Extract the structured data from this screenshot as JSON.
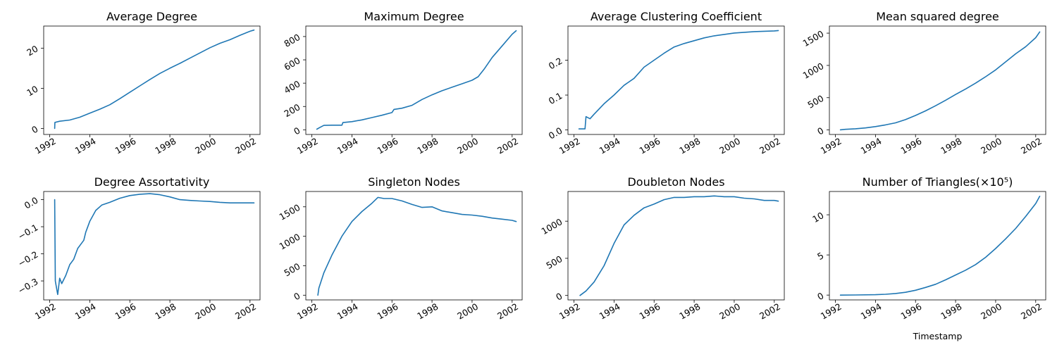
{
  "colors": {
    "line": "#1f77b4"
  },
  "chart_data": [
    {
      "type": "line",
      "title": "Average Degree",
      "xlabel": "",
      "xlim": [
        1991.7,
        2002.5
      ],
      "ylim": [
        -1.5,
        25.5
      ],
      "xticks": [
        1992,
        1994,
        1996,
        1998,
        2000,
        2002
      ],
      "xtick_labels": [
        "1992",
        "1994",
        "1996",
        "1998",
        "2000",
        "2002"
      ],
      "yticks": [
        0,
        10,
        20
      ],
      "ytick_labels": [
        "0",
        "10",
        "20"
      ],
      "series": [
        {
          "x": [
            1992.25,
            1992.26,
            1992.5,
            1993.0,
            1993.5,
            1994.0,
            1994.5,
            1995.0,
            1995.5,
            1996.0,
            1996.5,
            1997.0,
            1997.5,
            1998.0,
            1998.5,
            1999.0,
            1999.5,
            2000.0,
            2000.5,
            2001.0,
            2001.5,
            2002.0,
            2002.2
          ],
          "y": [
            0,
            1.5,
            1.8,
            2.1,
            2.8,
            3.8,
            4.8,
            5.9,
            7.4,
            9.0,
            10.6,
            12.2,
            13.7,
            15.0,
            16.2,
            17.5,
            18.8,
            20.1,
            21.2,
            22.1,
            23.2,
            24.2,
            24.5
          ]
        }
      ]
    },
    {
      "type": "line",
      "title": "Maximum Degree",
      "xlabel": "",
      "xlim": [
        1991.7,
        2002.5
      ],
      "ylim": [
        -40,
        890
      ],
      "xticks": [
        1992,
        1994,
        1996,
        1998,
        2000,
        2002
      ],
      "xtick_labels": [
        "1992",
        "1994",
        "1996",
        "1998",
        "2000",
        "2002"
      ],
      "yticks": [
        0,
        200,
        400,
        600,
        800
      ],
      "ytick_labels": [
        "0",
        "200",
        "400",
        "600",
        "800"
      ],
      "series": [
        {
          "x": [
            1992.25,
            1992.4,
            1992.6,
            1993.0,
            1993.5,
            1993.55,
            1994.0,
            1994.5,
            1995.0,
            1995.5,
            1996.0,
            1996.1,
            1996.5,
            1997.0,
            1997.5,
            1998.0,
            1998.5,
            1999.0,
            1999.5,
            2000.0,
            2000.3,
            2000.6,
            2001.0,
            2001.5,
            2002.0,
            2002.2
          ],
          "y": [
            5,
            20,
            38,
            40,
            40,
            62,
            70,
            85,
            105,
            125,
            148,
            175,
            185,
            210,
            260,
            300,
            335,
            365,
            395,
            425,
            455,
            520,
            620,
            720,
            820,
            850
          ]
        }
      ]
    },
    {
      "type": "line",
      "title": "Average Clustering Coefficient",
      "xlabel": "",
      "xlim": [
        1991.7,
        2002.5
      ],
      "ylim": [
        -0.013,
        0.298
      ],
      "xticks": [
        1992,
        1994,
        1996,
        1998,
        2000,
        2002
      ],
      "xtick_labels": [
        "1992",
        "1994",
        "1996",
        "1998",
        "2000",
        "2002"
      ],
      "yticks": [
        0.0,
        0.1,
        0.2
      ],
      "ytick_labels": [
        "0.0",
        "0.1",
        "0.2"
      ],
      "series": [
        {
          "x": [
            1992.25,
            1992.55,
            1992.6,
            1992.8,
            1993.0,
            1993.5,
            1994.0,
            1994.5,
            1995.0,
            1995.5,
            1996.0,
            1996.5,
            1997.0,
            1997.5,
            1998.0,
            1998.5,
            1999.0,
            1999.5,
            2000.0,
            2000.5,
            2001.0,
            2001.5,
            2002.0,
            2002.2
          ],
          "y": [
            0.003,
            0.003,
            0.038,
            0.032,
            0.045,
            0.075,
            0.1,
            0.128,
            0.148,
            0.18,
            0.2,
            0.22,
            0.238,
            0.248,
            0.256,
            0.264,
            0.27,
            0.274,
            0.278,
            0.28,
            0.282,
            0.283,
            0.284,
            0.285
          ]
        }
      ]
    },
    {
      "type": "line",
      "title": "Mean squared degree",
      "xlabel": "",
      "xlim": [
        1991.7,
        2002.5
      ],
      "ylim": [
        -70,
        1610
      ],
      "xticks": [
        1992,
        1994,
        1996,
        1998,
        2000,
        2002
      ],
      "xtick_labels": [
        "1992",
        "1994",
        "1996",
        "1998",
        "2000",
        "2002"
      ],
      "yticks": [
        0,
        500,
        1000,
        1500
      ],
      "ytick_labels": [
        "0",
        "500",
        "1000",
        "1500"
      ],
      "series": [
        {
          "x": [
            1992.25,
            1992.5,
            1993.0,
            1993.5,
            1994.0,
            1994.5,
            1995.0,
            1995.5,
            1996.0,
            1996.5,
            1997.0,
            1997.5,
            1998.0,
            1998.5,
            1999.0,
            1999.5,
            2000.0,
            2000.5,
            2001.0,
            2001.5,
            2002.0,
            2002.2
          ],
          "y": [
            2,
            10,
            18,
            32,
            52,
            78,
            110,
            160,
            225,
            295,
            375,
            460,
            550,
            635,
            725,
            825,
            930,
            1055,
            1180,
            1290,
            1430,
            1520
          ]
        }
      ]
    },
    {
      "type": "line",
      "title": "Degree Assortativity",
      "xlabel": "",
      "xlim": [
        1991.7,
        2002.5
      ],
      "ylim": [
        -0.37,
        0.03
      ],
      "xticks": [
        1992,
        1994,
        1996,
        1998,
        2000,
        2002
      ],
      "xtick_labels": [
        "1992",
        "1994",
        "1996",
        "1998",
        "2000",
        "2002"
      ],
      "yticks": [
        0.0,
        -0.1,
        -0.2,
        -0.3
      ],
      "ytick_labels": [
        "0.0",
        "−0.1",
        "−0.2",
        "−0.3"
      ],
      "series": [
        {
          "x": [
            1992.25,
            1992.28,
            1992.35,
            1992.4,
            1992.5,
            1992.6,
            1992.8,
            1993.0,
            1993.2,
            1993.4,
            1993.6,
            1993.7,
            1993.8,
            1994.0,
            1994.3,
            1994.6,
            1995.0,
            1995.5,
            1996.0,
            1996.5,
            1997.0,
            1997.5,
            1998.0,
            1998.5,
            1999.0,
            1999.5,
            2000.0,
            2000.5,
            2001.0,
            2001.5,
            2002.0,
            2002.2
          ],
          "y": [
            0.0,
            -0.3,
            -0.33,
            -0.35,
            -0.29,
            -0.31,
            -0.28,
            -0.24,
            -0.22,
            -0.18,
            -0.16,
            -0.15,
            -0.12,
            -0.08,
            -0.04,
            -0.02,
            -0.01,
            0.005,
            0.015,
            0.02,
            0.022,
            0.018,
            0.01,
            0.0,
            -0.003,
            -0.005,
            -0.007,
            -0.01,
            -0.012,
            -0.012,
            -0.012,
            -0.012
          ]
        }
      ]
    },
    {
      "type": "line",
      "title": "Singleton Nodes",
      "xlabel": "",
      "xlim": [
        1991.7,
        2002.5
      ],
      "ylim": [
        -80,
        1760
      ],
      "xticks": [
        1992,
        1994,
        1996,
        1998,
        2000,
        2002
      ],
      "xtick_labels": [
        "1992",
        "1994",
        "1996",
        "1998",
        "2000",
        "2002"
      ],
      "yticks": [
        0,
        500,
        1000,
        1500
      ],
      "ytick_labels": [
        "0",
        "500",
        "1000",
        "1500"
      ],
      "series": [
        {
          "x": [
            1992.3,
            1992.35,
            1992.6,
            1993.0,
            1993.5,
            1994.0,
            1994.5,
            1995.0,
            1995.3,
            1995.6,
            1996.0,
            1996.5,
            1997.0,
            1997.5,
            1998.0,
            1998.5,
            1999.0,
            1999.5,
            2000.0,
            2000.5,
            2001.0,
            2001.5,
            2002.0,
            2002.2
          ],
          "y": [
            0,
            120,
            380,
            680,
            1000,
            1250,
            1420,
            1560,
            1660,
            1640,
            1640,
            1600,
            1540,
            1490,
            1500,
            1430,
            1400,
            1370,
            1360,
            1340,
            1310,
            1290,
            1270,
            1250
          ]
        }
      ]
    },
    {
      "type": "line",
      "title": "Doubleton Nodes",
      "xlabel": "",
      "xlim": [
        1991.7,
        2002.5
      ],
      "ylim": [
        -60,
        1400
      ],
      "xticks": [
        1992,
        1994,
        1996,
        1998,
        2000,
        2002
      ],
      "xtick_labels": [
        "1992",
        "1994",
        "1996",
        "1998",
        "2000",
        "2002"
      ],
      "yticks": [
        0,
        500,
        1000
      ],
      "ytick_labels": [
        "0",
        "500",
        "1000"
      ],
      "series": [
        {
          "x": [
            1992.3,
            1992.6,
            1993.0,
            1993.5,
            1994.0,
            1994.5,
            1995.0,
            1995.5,
            1996.0,
            1996.5,
            1997.0,
            1997.5,
            1998.0,
            1998.5,
            1999.0,
            1999.5,
            2000.0,
            2000.5,
            2001.0,
            2001.5,
            2002.0,
            2002.2
          ],
          "y": [
            0,
            60,
            180,
            400,
            700,
            950,
            1080,
            1180,
            1230,
            1290,
            1320,
            1320,
            1330,
            1330,
            1340,
            1330,
            1330,
            1310,
            1300,
            1280,
            1280,
            1270
          ]
        }
      ]
    },
    {
      "type": "line",
      "title": "Number of Triangles(×10⁵)",
      "xlabel": "Timestamp",
      "xlim": [
        1991.7,
        2002.5
      ],
      "ylim": [
        -0.6,
        12.9
      ],
      "xticks": [
        1992,
        1994,
        1996,
        1998,
        2000,
        2002
      ],
      "xtick_labels": [
        "1992",
        "1994",
        "1996",
        "1998",
        "2000",
        "2002"
      ],
      "yticks": [
        0,
        5,
        10
      ],
      "ytick_labels": [
        "0",
        "5",
        "10"
      ],
      "series": [
        {
          "x": [
            1992.25,
            1993.0,
            1994.0,
            1994.5,
            1995.0,
            1995.5,
            1996.0,
            1996.5,
            1997.0,
            1997.5,
            1998.0,
            1998.5,
            1999.0,
            1999.5,
            2000.0,
            2000.5,
            2001.0,
            2001.5,
            2002.0,
            2002.2
          ],
          "y": [
            0.0,
            0.01,
            0.05,
            0.1,
            0.2,
            0.35,
            0.6,
            0.95,
            1.35,
            1.9,
            2.5,
            3.1,
            3.8,
            4.7,
            5.8,
            7.0,
            8.3,
            9.8,
            11.4,
            12.3
          ]
        }
      ]
    }
  ]
}
